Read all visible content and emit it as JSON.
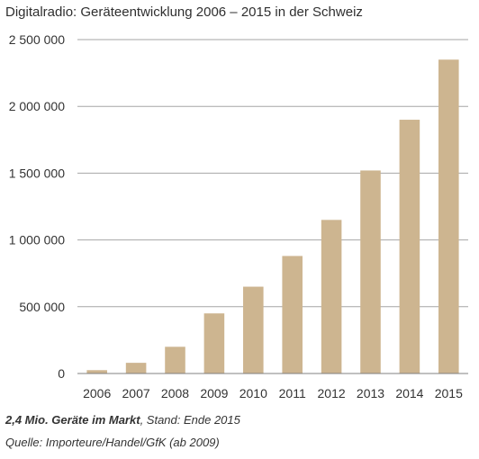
{
  "title": "Digitalradio: Geräteentwicklung 2006 – 2015 in der Schweiz",
  "footer": {
    "highlight": "2,4 Mio. Geräte im Markt",
    "status": ", Stand: Ende 2015",
    "source": "Quelle: Importeure/Handel/GfK (ab 2009)"
  },
  "colors": {
    "bar": "#cdb590",
    "grid": "#a6a6a6",
    "axis": "#808080"
  },
  "chart_data": {
    "type": "bar",
    "title": "Digitalradio: Geräteentwicklung 2006 – 2015 in der Schweiz",
    "xlabel": "",
    "ylabel": "",
    "categories": [
      "2006",
      "2007",
      "2008",
      "2009",
      "2010",
      "2011",
      "2012",
      "2013",
      "2014",
      "2015"
    ],
    "values": [
      25000,
      80000,
      200000,
      450000,
      650000,
      880000,
      1150000,
      1520000,
      1900000,
      2350000
    ],
    "ylim": [
      0,
      2500000
    ],
    "yticks": [
      0,
      500000,
      1000000,
      1500000,
      2000000,
      2500000
    ],
    "ytick_labels": [
      "0",
      "500 000",
      "1 000 000",
      "1 500 000",
      "2 000 000",
      "2 500 000"
    ],
    "grid": true,
    "legend": "none"
  }
}
